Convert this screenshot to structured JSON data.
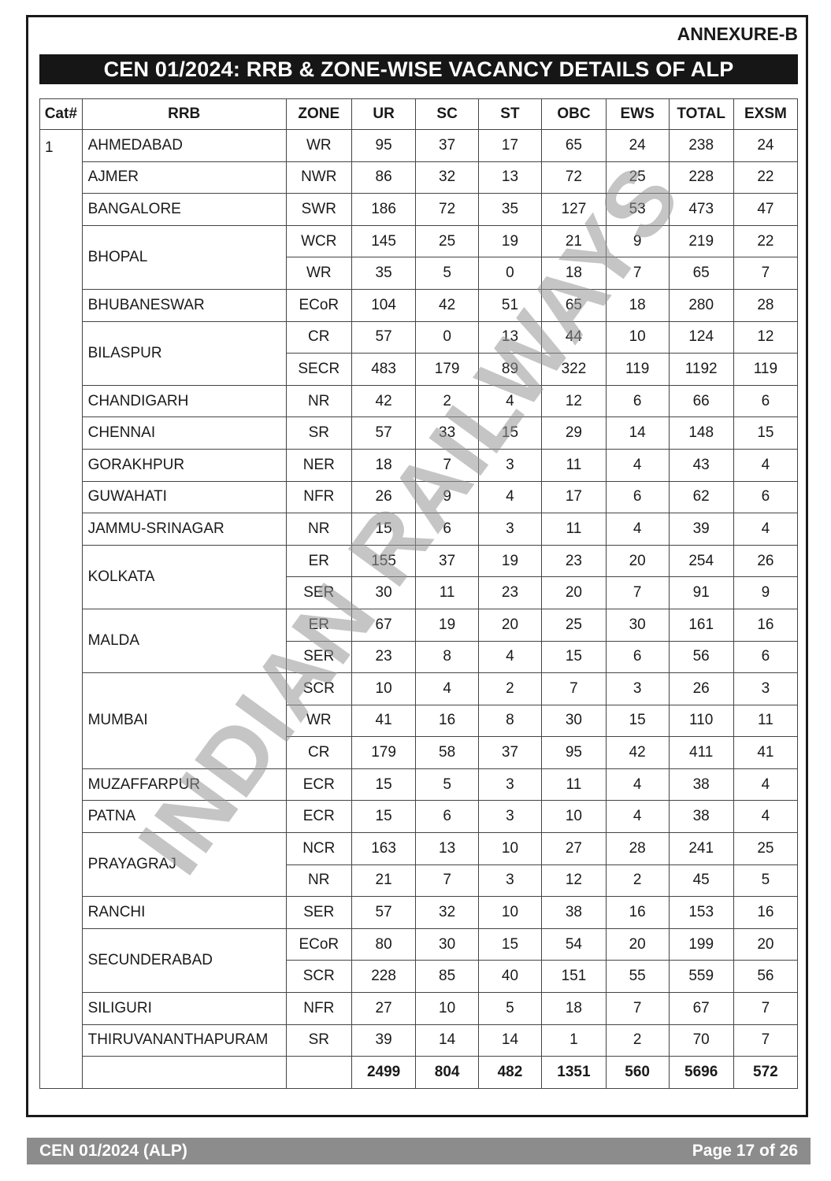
{
  "annexure": "ANNEXURE-B",
  "title": "CEN 01/2024: RRB & ZONE-WISE VACANCY DETAILS OF ALP",
  "watermark": "INDIAN RAILWAYS",
  "table": {
    "headers": [
      "Cat#",
      "RRB",
      "ZONE",
      "UR",
      "SC",
      "ST",
      "OBC",
      "EWS",
      "TOTAL",
      "EXSM"
    ],
    "cat": "1",
    "groups": [
      {
        "rrb": "AHMEDABAD",
        "rows": [
          [
            "WR",
            "95",
            "37",
            "17",
            "65",
            "24",
            "238",
            "24"
          ]
        ]
      },
      {
        "rrb": "AJMER",
        "rows": [
          [
            "NWR",
            "86",
            "32",
            "13",
            "72",
            "25",
            "228",
            "22"
          ]
        ]
      },
      {
        "rrb": "BANGALORE",
        "rows": [
          [
            "SWR",
            "186",
            "72",
            "35",
            "127",
            "53",
            "473",
            "47"
          ]
        ]
      },
      {
        "rrb": "BHOPAL",
        "rows": [
          [
            "WCR",
            "145",
            "25",
            "19",
            "21",
            "9",
            "219",
            "22"
          ],
          [
            "WR",
            "35",
            "5",
            "0",
            "18",
            "7",
            "65",
            "7"
          ]
        ]
      },
      {
        "rrb": "BHUBANESWAR",
        "rows": [
          [
            "ECoR",
            "104",
            "42",
            "51",
            "65",
            "18",
            "280",
            "28"
          ]
        ]
      },
      {
        "rrb": "BILASPUR",
        "rows": [
          [
            "CR",
            "57",
            "0",
            "13",
            "44",
            "10",
            "124",
            "12"
          ],
          [
            "SECR",
            "483",
            "179",
            "89",
            "322",
            "119",
            "1192",
            "119"
          ]
        ]
      },
      {
        "rrb": "CHANDIGARH",
        "rows": [
          [
            "NR",
            "42",
            "2",
            "4",
            "12",
            "6",
            "66",
            "6"
          ]
        ]
      },
      {
        "rrb": "CHENNAI",
        "rows": [
          [
            "SR",
            "57",
            "33",
            "15",
            "29",
            "14",
            "148",
            "15"
          ]
        ]
      },
      {
        "rrb": "GORAKHPUR",
        "rows": [
          [
            "NER",
            "18",
            "7",
            "3",
            "11",
            "4",
            "43",
            "4"
          ]
        ]
      },
      {
        "rrb": "GUWAHATI",
        "rows": [
          [
            "NFR",
            "26",
            "9",
            "4",
            "17",
            "6",
            "62",
            "6"
          ]
        ]
      },
      {
        "rrb": "JAMMU-SRINAGAR",
        "rows": [
          [
            "NR",
            "15",
            "6",
            "3",
            "11",
            "4",
            "39",
            "4"
          ]
        ]
      },
      {
        "rrb": "KOLKATA",
        "rows": [
          [
            "ER",
            "155",
            "37",
            "19",
            "23",
            "20",
            "254",
            "26"
          ],
          [
            "SER",
            "30",
            "11",
            "23",
            "20",
            "7",
            "91",
            "9"
          ]
        ]
      },
      {
        "rrb": "MALDA",
        "rows": [
          [
            "ER",
            "67",
            "19",
            "20",
            "25",
            "30",
            "161",
            "16"
          ],
          [
            "SER",
            "23",
            "8",
            "4",
            "15",
            "6",
            "56",
            "6"
          ]
        ]
      },
      {
        "rrb": "MUMBAI",
        "rows": [
          [
            "SCR",
            "10",
            "4",
            "2",
            "7",
            "3",
            "26",
            "3"
          ],
          [
            "WR",
            "41",
            "16",
            "8",
            "30",
            "15",
            "110",
            "11"
          ],
          [
            "CR",
            "179",
            "58",
            "37",
            "95",
            "42",
            "411",
            "41"
          ]
        ]
      },
      {
        "rrb": "MUZAFFARPUR",
        "rows": [
          [
            "ECR",
            "15",
            "5",
            "3",
            "11",
            "4",
            "38",
            "4"
          ]
        ]
      },
      {
        "rrb": "PATNA",
        "rows": [
          [
            "ECR",
            "15",
            "6",
            "3",
            "10",
            "4",
            "38",
            "4"
          ]
        ]
      },
      {
        "rrb": "PRAYAGRAJ",
        "rows": [
          [
            "NCR",
            "163",
            "13",
            "10",
            "27",
            "28",
            "241",
            "25"
          ],
          [
            "NR",
            "21",
            "7",
            "3",
            "12",
            "2",
            "45",
            "5"
          ]
        ]
      },
      {
        "rrb": "RANCHI",
        "rows": [
          [
            "SER",
            "57",
            "32",
            "10",
            "38",
            "16",
            "153",
            "16"
          ]
        ]
      },
      {
        "rrb": "SECUNDERABAD",
        "rows": [
          [
            "ECoR",
            "80",
            "30",
            "15",
            "54",
            "20",
            "199",
            "20"
          ],
          [
            "SCR",
            "228",
            "85",
            "40",
            "151",
            "55",
            "559",
            "56"
          ]
        ]
      },
      {
        "rrb": "SILIGURI",
        "rows": [
          [
            "NFR",
            "27",
            "10",
            "5",
            "18",
            "7",
            "67",
            "7"
          ]
        ]
      },
      {
        "rrb": "THIRUVANANTHAPURAM",
        "rows": [
          [
            "SR",
            "39",
            "14",
            "14",
            "1",
            "2",
            "70",
            "7"
          ]
        ]
      }
    ],
    "totals": [
      "2499",
      "804",
      "482",
      "1351",
      "560",
      "5696",
      "572"
    ]
  },
  "footer": {
    "left": "CEN 01/2024 (ALP)",
    "right": "Page 17 of 26"
  }
}
